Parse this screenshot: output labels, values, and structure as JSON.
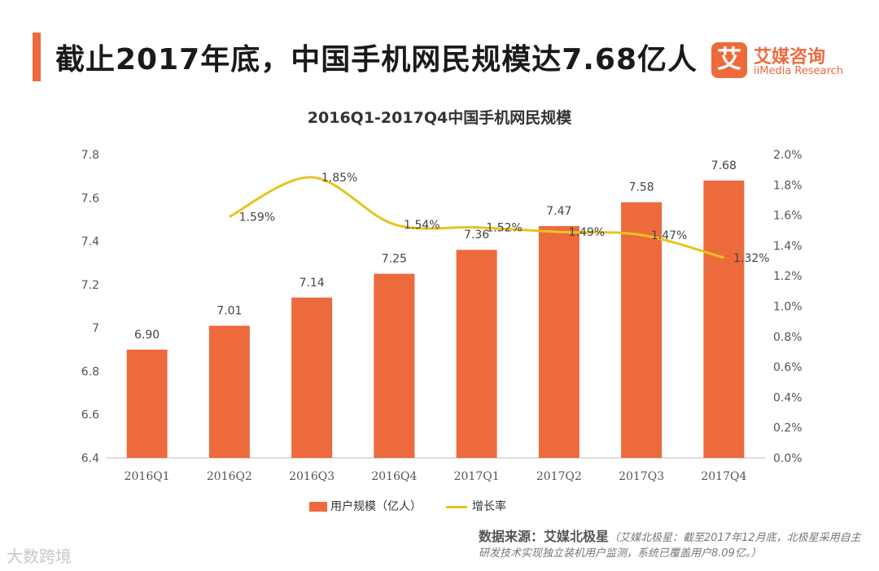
{
  "header": {
    "headline": "截止2017年底，中国手机网民规模达7.68亿人",
    "brand_mark": "艾",
    "brand_cn": "艾媒咨询",
    "brand_en": "iiMedia Research"
  },
  "chart_data": {
    "type": "bar",
    "title": "2016Q1-2017Q4中国手机网民规模",
    "categories": [
      "2016Q1",
      "2016Q2",
      "2016Q3",
      "2016Q4",
      "2017Q1",
      "2017Q2",
      "2017Q3",
      "2017Q4"
    ],
    "series": [
      {
        "name": "用户规模（亿人）",
        "type": "bar",
        "axis": "left",
        "color": "#ed6a3c",
        "values": [
          6.9,
          7.01,
          7.14,
          7.25,
          7.36,
          7.47,
          7.58,
          7.68
        ],
        "labels": [
          "6.90",
          "7.01",
          "7.14",
          "7.25",
          "7.36",
          "7.47",
          "7.58",
          "7.68"
        ]
      },
      {
        "name": "增长率",
        "type": "line",
        "axis": "right",
        "color": "#e6c41f",
        "values": [
          null,
          1.59,
          1.85,
          1.54,
          1.52,
          1.49,
          1.47,
          1.32
        ],
        "labels": [
          "",
          "1.59%",
          "1.85%",
          "1.54%",
          "1.52%",
          "1.49%",
          "1.47%",
          "1.32%"
        ]
      }
    ],
    "ylim_left": [
      6.4,
      7.8
    ],
    "yticks_left": [
      "6.4",
      "6.6",
      "6.8",
      "7",
      "7.2",
      "7.4",
      "7.6",
      "7.8"
    ],
    "ylim_right": [
      0,
      2.0
    ],
    "yticks_right": [
      "0.0%",
      "0.2%",
      "0.4%",
      "0.6%",
      "0.8%",
      "1.0%",
      "1.2%",
      "1.4%",
      "1.6%",
      "1.8%",
      "2.0%"
    ],
    "grid": false,
    "legend_position": "bottom"
  },
  "footer": {
    "source_label": "数据来源：艾媒北极星",
    "source_note": "（艾媒北极星：截至2017年12月底，北极星采用自主研发技术实现独立装机用户监测，系统已覆盖用户8.09亿。）",
    "corner_mark": "大数跨境"
  }
}
